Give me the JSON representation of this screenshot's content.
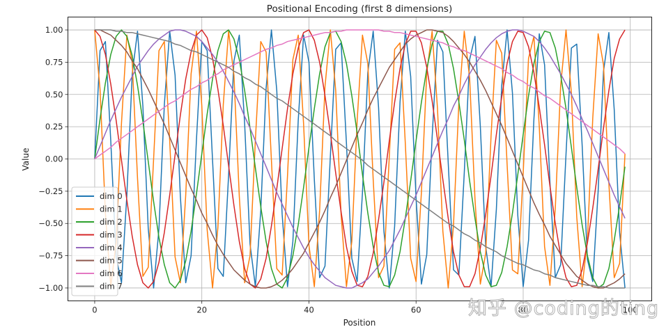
{
  "watermark": "知乎 @coding的ting",
  "chart_data": {
    "type": "line",
    "title": "Positional Encoding (first 8 dimensions)",
    "xlabel": "Position",
    "ylabel": "Value",
    "xlim": [
      -5,
      104
    ],
    "ylim": [
      -1.1,
      1.1
    ],
    "xticks": [
      0,
      20,
      40,
      60,
      80,
      100
    ],
    "xtick_labels": [
      "0",
      "20",
      "40",
      "60",
      "80",
      "100"
    ],
    "yticks": [
      1.0,
      0.75,
      0.5,
      0.25,
      0.0,
      -0.25,
      -0.5,
      -0.75,
      -1.0
    ],
    "ytick_labels": [
      "1.00",
      "0.75",
      "0.50",
      "0.25",
      "0.00",
      "−0.25",
      "−0.50",
      "−0.75",
      "−1.00"
    ],
    "grid": true,
    "legend_position": "lower left",
    "x_start": 0,
    "x_step": 1,
    "series": [
      {
        "name": "dim 0",
        "color": "#1f77b4",
        "values": [
          0.0,
          0.84,
          0.91,
          0.14,
          -0.76,
          -0.96,
          -0.28,
          0.66,
          0.99,
          0.41,
          -0.54,
          -1.0,
          -0.54,
          0.42,
          0.99,
          0.65,
          -0.29,
          -0.96,
          -0.75,
          0.15,
          0.91,
          0.84,
          -0.01,
          -0.85,
          -0.91,
          -0.13,
          0.76,
          0.96,
          0.27,
          -0.66,
          -0.99,
          -0.4,
          0.55,
          1.0,
          0.53,
          -0.43,
          -0.99,
          -0.64,
          0.3,
          0.96,
          0.75,
          -0.16,
          -0.92,
          -0.83,
          0.02,
          0.85,
          0.9,
          0.12,
          -0.77,
          -0.95,
          -0.26,
          0.67,
          0.99,
          0.4,
          -0.56,
          -1.0,
          -0.52,
          0.44,
          0.99,
          0.64,
          -0.3,
          -0.97,
          -0.74,
          0.17,
          0.92,
          0.83,
          -0.03,
          -0.86,
          -0.9,
          -0.11,
          0.77,
          0.95,
          0.25,
          -0.68,
          -0.99,
          -0.39,
          0.57,
          1.0,
          0.51,
          -0.44,
          -0.99,
          -0.63,
          0.31,
          0.97,
          0.73,
          -0.18,
          -0.92,
          -0.82,
          0.04,
          0.86,
          0.89,
          0.11,
          -0.78,
          -0.95,
          -0.25,
          0.68,
          0.98,
          0.38,
          -0.57,
          -1.0
        ]
      },
      {
        "name": "dim 1",
        "color": "#ff7f0e",
        "values": [
          1.0,
          0.54,
          -0.42,
          -0.99,
          -0.65,
          0.28,
          0.96,
          0.75,
          -0.15,
          -0.91,
          -0.84,
          0.0,
          0.84,
          0.91,
          0.14,
          -0.76,
          -0.96,
          -0.28,
          0.66,
          0.99,
          0.41,
          -0.55,
          -1.0,
          -0.53,
          0.42,
          0.99,
          0.65,
          -0.29,
          -0.96,
          -0.75,
          0.15,
          0.91,
          0.83,
          -0.01,
          -0.85,
          -0.9,
          -0.13,
          0.77,
          0.96,
          0.27,
          -0.67,
          -0.99,
          -0.4,
          0.56,
          1.0,
          0.53,
          -0.43,
          -0.99,
          -0.64,
          0.3,
          0.96,
          0.74,
          -0.16,
          -0.92,
          -0.83,
          0.02,
          0.85,
          0.9,
          0.12,
          -0.77,
          -0.95,
          -0.26,
          0.67,
          0.99,
          0.39,
          -0.56,
          -1.0,
          -0.51,
          0.44,
          0.99,
          0.63,
          -0.31,
          -0.97,
          -0.73,
          0.18,
          0.92,
          0.82,
          -0.04,
          -0.86,
          -0.89,
          -0.11,
          0.78,
          0.95,
          0.25,
          -0.68,
          -0.98,
          -0.38,
          0.57,
          1.0,
          0.51,
          -0.45,
          -0.99,
          -0.63,
          0.32,
          0.97,
          0.73,
          -0.19,
          -0.92,
          -0.81,
          0.04
        ]
      },
      {
        "name": "dim 2",
        "color": "#2ca02c",
        "values": [
          0.0,
          0.31,
          0.59,
          0.81,
          0.95,
          1.0,
          0.95,
          0.8,
          0.57,
          0.29,
          -0.02,
          -0.33,
          -0.61,
          -0.82,
          -0.96,
          -1.0,
          -0.94,
          -0.79,
          -0.56,
          -0.27,
          0.04,
          0.35,
          0.62,
          0.84,
          0.97,
          1.0,
          0.93,
          0.77,
          0.53,
          0.24,
          -0.07,
          -0.37,
          -0.64,
          -0.85,
          -0.97,
          -1.0,
          -0.92,
          -0.75,
          -0.51,
          -0.22,
          0.09,
          0.39,
          0.66,
          0.87,
          0.98,
          0.99,
          0.91,
          0.74,
          0.49,
          0.2,
          -0.12,
          -0.42,
          -0.68,
          -0.88,
          -0.98,
          -0.99,
          -0.9,
          -0.72,
          -0.46,
          -0.17,
          0.14,
          0.44,
          0.7,
          0.89,
          0.99,
          0.99,
          0.89,
          0.7,
          0.44,
          0.15,
          -0.17,
          -0.46,
          -0.72,
          -0.9,
          -0.99,
          -0.98,
          -0.88,
          -0.68,
          -0.42,
          -0.12,
          0.19,
          0.49,
          0.74,
          0.91,
          0.99,
          0.98,
          0.86,
          0.65,
          0.39,
          0.09,
          -0.22,
          -0.51,
          -0.75,
          -0.92,
          -1.0,
          -0.97,
          -0.85,
          -0.63,
          -0.36,
          -0.06
        ]
      },
      {
        "name": "dim 3",
        "color": "#d62728",
        "values": [
          1.0,
          0.95,
          0.81,
          0.58,
          0.3,
          -0.01,
          -0.32,
          -0.6,
          -0.82,
          -0.96,
          -1.0,
          -0.95,
          -0.8,
          -0.57,
          -0.28,
          0.03,
          0.34,
          0.62,
          0.83,
          0.96,
          1.0,
          0.94,
          0.78,
          0.54,
          0.26,
          -0.05,
          -0.36,
          -0.64,
          -0.85,
          -0.97,
          -1.0,
          -0.93,
          -0.77,
          -0.52,
          -0.23,
          0.08,
          0.39,
          0.66,
          0.86,
          0.98,
          1.0,
          0.92,
          0.75,
          0.49,
          0.2,
          -0.11,
          -0.41,
          -0.68,
          -0.87,
          -0.98,
          -0.99,
          -0.91,
          -0.73,
          -0.47,
          -0.18,
          0.14,
          0.44,
          0.7,
          0.89,
          0.99,
          0.99,
          0.9,
          0.71,
          0.45,
          0.15,
          -0.16,
          -0.46,
          -0.72,
          -0.9,
          -0.99,
          -0.99,
          -0.89,
          -0.69,
          -0.43,
          -0.13,
          0.19,
          0.48,
          0.74,
          0.91,
          0.99,
          0.98,
          0.87,
          0.67,
          0.4,
          0.11,
          -0.21,
          -0.5,
          -0.75,
          -0.92,
          -0.99,
          -0.98,
          -0.86,
          -0.65,
          -0.38,
          -0.08,
          0.24,
          0.53,
          0.78,
          0.93,
          1.0
        ]
      },
      {
        "name": "dim 4",
        "color": "#9467bd",
        "values": [
          0.0,
          0.1,
          0.2,
          0.3,
          0.39,
          0.48,
          0.56,
          0.64,
          0.72,
          0.78,
          0.84,
          0.89,
          0.93,
          0.96,
          0.99,
          1.0,
          1.0,
          0.99,
          0.97,
          0.95,
          0.91,
          0.86,
          0.81,
          0.75,
          0.68,
          0.6,
          0.52,
          0.43,
          0.33,
          0.24,
          0.14,
          0.04,
          -0.06,
          -0.16,
          -0.26,
          -0.35,
          -0.44,
          -0.53,
          -0.61,
          -0.69,
          -0.76,
          -0.82,
          -0.87,
          -0.92,
          -0.95,
          -0.98,
          -0.99,
          -1.0,
          -1.0,
          -0.98,
          -0.96,
          -0.93,
          -0.88,
          -0.83,
          -0.77,
          -0.71,
          -0.63,
          -0.55,
          -0.46,
          -0.37,
          -0.28,
          -0.18,
          -0.08,
          0.02,
          0.12,
          0.22,
          0.31,
          0.41,
          0.49,
          0.58,
          0.66,
          0.73,
          0.79,
          0.85,
          0.9,
          0.94,
          0.97,
          0.99,
          1.0,
          1.0,
          0.99,
          0.97,
          0.95,
          0.91,
          0.86,
          0.8,
          0.73,
          0.66,
          0.58,
          0.5,
          0.41,
          0.31,
          0.22,
          0.12,
          0.02,
          -0.08,
          -0.18,
          -0.28,
          -0.37,
          -0.46
        ]
      },
      {
        "name": "dim 5",
        "color": "#8c564b",
        "values": [
          1.0,
          1.0,
          0.98,
          0.96,
          0.92,
          0.88,
          0.83,
          0.76,
          0.7,
          0.62,
          0.54,
          0.45,
          0.36,
          0.27,
          0.17,
          0.07,
          -0.03,
          -0.13,
          -0.23,
          -0.32,
          -0.42,
          -0.5,
          -0.59,
          -0.67,
          -0.74,
          -0.8,
          -0.86,
          -0.9,
          -0.94,
          -0.97,
          -0.99,
          -1.0,
          -1.0,
          -0.99,
          -0.97,
          -0.94,
          -0.9,
          -0.85,
          -0.79,
          -0.73,
          -0.65,
          -0.57,
          -0.49,
          -0.4,
          -0.3,
          -0.21,
          -0.11,
          -0.01,
          0.09,
          0.19,
          0.28,
          0.38,
          0.47,
          0.55,
          0.63,
          0.71,
          0.77,
          0.83,
          0.89,
          0.93,
          0.96,
          0.98,
          1.0,
          1.0,
          0.99,
          0.98,
          0.95,
          0.91,
          0.86,
          0.81,
          0.75,
          0.68,
          0.61,
          0.53,
          0.44,
          0.35,
          0.26,
          0.16,
          0.06,
          -0.04,
          -0.14,
          -0.24,
          -0.34,
          -0.43,
          -0.51,
          -0.6,
          -0.67,
          -0.74,
          -0.81,
          -0.86,
          -0.91,
          -0.94,
          -0.97,
          -0.99,
          -1.0,
          -1.0,
          -0.98,
          -0.96,
          -0.93,
          -0.89
        ]
      },
      {
        "name": "dim 6",
        "color": "#e377c2",
        "values": [
          0.0,
          0.03,
          0.06,
          0.09,
          0.13,
          0.16,
          0.19,
          0.22,
          0.25,
          0.28,
          0.31,
          0.34,
          0.37,
          0.4,
          0.43,
          0.45,
          0.48,
          0.51,
          0.54,
          0.56,
          0.59,
          0.61,
          0.64,
          0.66,
          0.69,
          0.71,
          0.73,
          0.75,
          0.77,
          0.79,
          0.81,
          0.83,
          0.85,
          0.86,
          0.88,
          0.89,
          0.91,
          0.92,
          0.93,
          0.94,
          0.95,
          0.96,
          0.97,
          0.98,
          0.98,
          0.99,
          0.99,
          1.0,
          1.0,
          1.0,
          1.0,
          1.0,
          1.0,
          1.0,
          0.99,
          0.99,
          0.98,
          0.98,
          0.97,
          0.96,
          0.95,
          0.94,
          0.93,
          0.92,
          0.91,
          0.9,
          0.88,
          0.87,
          0.85,
          0.84,
          0.82,
          0.8,
          0.78,
          0.76,
          0.74,
          0.72,
          0.7,
          0.67,
          0.65,
          0.62,
          0.6,
          0.57,
          0.55,
          0.52,
          0.49,
          0.47,
          0.44,
          0.41,
          0.38,
          0.35,
          0.32,
          0.29,
          0.26,
          0.23,
          0.2,
          0.17,
          0.14,
          0.11,
          0.08,
          0.04
        ]
      },
      {
        "name": "dim 7",
        "color": "#7f7f7f",
        "values": [
          1.0,
          1.0,
          1.0,
          1.0,
          0.99,
          0.99,
          0.98,
          0.98,
          0.97,
          0.96,
          0.95,
          0.94,
          0.93,
          0.92,
          0.91,
          0.89,
          0.88,
          0.86,
          0.84,
          0.83,
          0.81,
          0.79,
          0.77,
          0.75,
          0.73,
          0.71,
          0.68,
          0.66,
          0.63,
          0.61,
          0.58,
          0.56,
          0.53,
          0.5,
          0.47,
          0.45,
          0.42,
          0.39,
          0.36,
          0.33,
          0.3,
          0.27,
          0.24,
          0.21,
          0.18,
          0.14,
          0.11,
          0.08,
          0.05,
          0.02,
          -0.01,
          -0.05,
          -0.08,
          -0.11,
          -0.14,
          -0.17,
          -0.2,
          -0.23,
          -0.26,
          -0.29,
          -0.32,
          -0.35,
          -0.38,
          -0.41,
          -0.44,
          -0.47,
          -0.5,
          -0.52,
          -0.55,
          -0.58,
          -0.6,
          -0.63,
          -0.65,
          -0.68,
          -0.7,
          -0.72,
          -0.75,
          -0.77,
          -0.79,
          -0.81,
          -0.82,
          -0.84,
          -0.86,
          -0.87,
          -0.89,
          -0.9,
          -0.92,
          -0.93,
          -0.94,
          -0.95,
          -0.96,
          -0.97,
          -0.98,
          -0.98,
          -0.99,
          -0.99,
          -1.0,
          -1.0,
          -1.0,
          -1.0
        ]
      }
    ]
  }
}
